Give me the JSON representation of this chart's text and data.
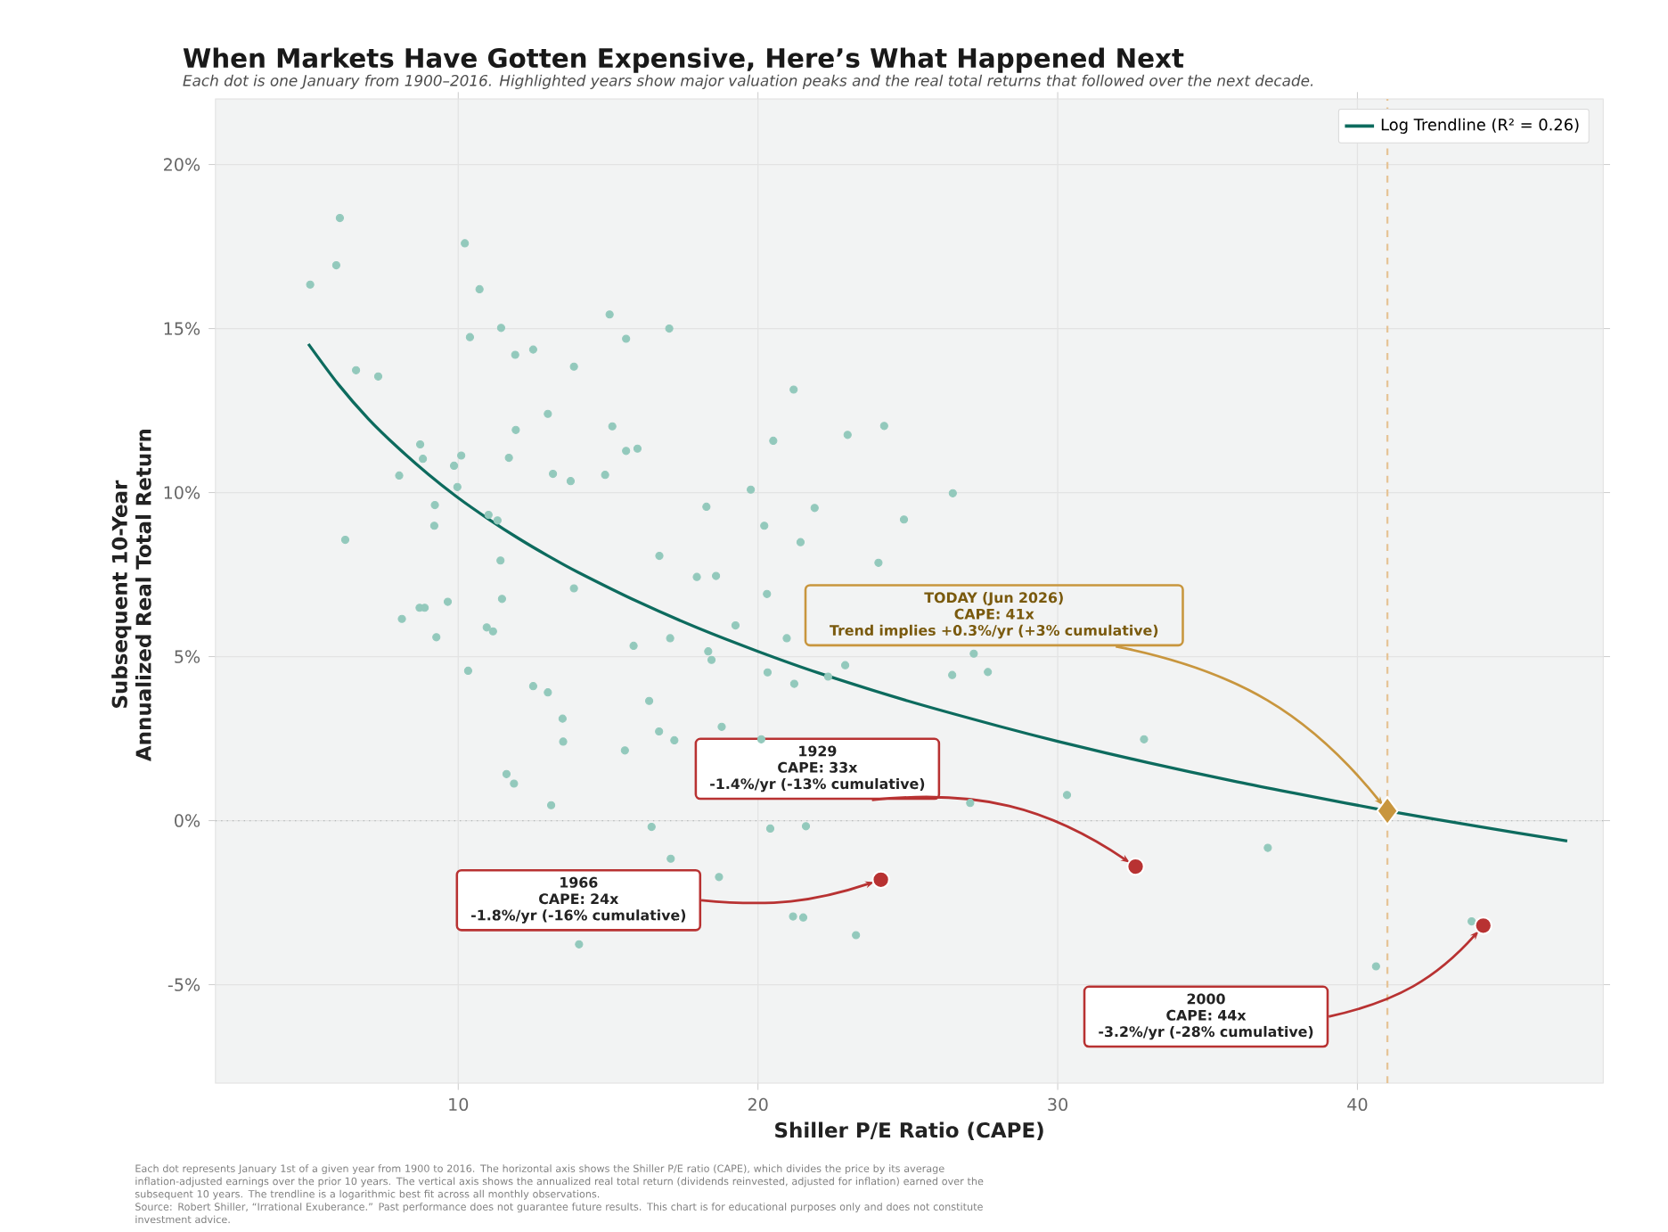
{
  "chart_data": {
    "type": "scatter",
    "title": "When Markets Have Gotten Expensive, Here’s What Happened Next",
    "subtitle": "Each dot is one January from 1900–2016. Highlighted years show major valuation peaks and the real total returns that followed over the next decade.",
    "xlabel": "Shiller P/E Ratio (CAPE)",
    "ylabel": "Subsequent 10-Year\nAnnualized Real Total Return",
    "xlim": [
      1.9,
      48.2
    ],
    "ylim": [
      -8,
      22
    ],
    "xticks": [
      10,
      20,
      30,
      40
    ],
    "yticks": [
      {
        "value": -5,
        "label": "-5%"
      },
      {
        "value": 0,
        "label": "0%"
      },
      {
        "value": 5,
        "label": "5%"
      },
      {
        "value": 10,
        "label": "10%"
      },
      {
        "value": 15,
        "label": "15%"
      },
      {
        "value": 20,
        "label": "20%"
      }
    ],
    "grid": true,
    "legend": "top right",
    "marker": "circle",
    "series": [
      {
        "color": "#93c9bc",
        "x": [
          6.05,
          5.93,
          5.06,
          10.22,
          10.71,
          10.39,
          11.43,
          11.9,
          12.5,
          13.86,
          15.05,
          15.6,
          17.04,
          6.59,
          7.33,
          12.99,
          11.92,
          15.14,
          15.6,
          15.98,
          8.73,
          8.82,
          10.1,
          9.86,
          11.69,
          13.16,
          13.75,
          14.9,
          8.03,
          9.97,
          9.22,
          9.2,
          6.23,
          11.01,
          11.31,
          11.41,
          18.28,
          16.71,
          17.96,
          18.6,
          13.86,
          11.46,
          9.65,
          8.71,
          8.88,
          8.12,
          9.27,
          10.95,
          11.16,
          15.85,
          17.07,
          21.19,
          22.99,
          24.21,
          20.51,
          19.76,
          21.89,
          26.5,
          20.21,
          24.87,
          21.42,
          24.02,
          20.3,
          19.25,
          20.96,
          10.33,
          12.5,
          12.99,
          13.48,
          13.5,
          18.34,
          18.45,
          20.32,
          21.21,
          22.34,
          22.91,
          16.37,
          16.7,
          17.21,
          18.79,
          20.11,
          15.56,
          11.61,
          11.86,
          13.1,
          16.45,
          20.41,
          21.6,
          17.09,
          18.7,
          21.17,
          21.51,
          23.27,
          14.03,
          26.48,
          27.67,
          27.2,
          32.88,
          27.08,
          30.31,
          37.01,
          40.62,
          43.81
        ],
        "values": [
          18.37,
          16.93,
          16.34,
          17.6,
          16.2,
          14.74,
          15.02,
          14.2,
          14.36,
          13.84,
          15.43,
          14.69,
          15.0,
          13.73,
          13.54,
          12.4,
          11.91,
          12.02,
          11.27,
          11.34,
          11.47,
          11.03,
          11.13,
          10.82,
          11.06,
          10.57,
          10.35,
          10.54,
          10.52,
          10.17,
          9.62,
          8.99,
          8.56,
          9.32,
          9.15,
          7.93,
          9.57,
          8.07,
          7.43,
          7.46,
          7.08,
          6.76,
          6.67,
          6.49,
          6.49,
          6.15,
          5.59,
          5.89,
          5.77,
          5.33,
          5.56,
          13.14,
          11.76,
          12.03,
          11.58,
          10.09,
          9.53,
          9.98,
          8.99,
          9.18,
          8.49,
          7.86,
          6.91,
          5.95,
          5.56,
          4.57,
          4.1,
          3.91,
          3.11,
          2.41,
          5.16,
          4.9,
          4.52,
          4.17,
          4.39,
          4.74,
          3.65,
          2.72,
          2.45,
          2.86,
          2.48,
          2.14,
          1.42,
          1.13,
          0.47,
          -0.19,
          -0.24,
          -0.17,
          -1.16,
          -1.72,
          -2.92,
          -2.95,
          -3.49,
          -3.77,
          4.44,
          4.53,
          5.09,
          2.48,
          0.54,
          0.78,
          -0.83,
          -4.44,
          -3.07
        ]
      },
      {
        "type": "line",
        "name": "Log Trendline (R² = 0.26)",
        "color": "#0d6b5e",
        "marker": "none",
        "x": [
          5,
          6,
          7,
          8,
          9,
          10,
          11,
          12,
          13,
          14,
          16,
          18,
          20,
          22,
          25,
          28,
          30,
          33,
          36,
          38,
          41,
          44,
          47
        ],
        "values": [
          14.53,
          13.3,
          12.25,
          11.36,
          10.56,
          9.84,
          9.2,
          8.61,
          8.07,
          7.57,
          6.67,
          5.87,
          5.16,
          4.51,
          3.65,
          2.89,
          2.42,
          1.77,
          1.18,
          0.82,
          0.3,
          -0.17,
          -0.62
        ]
      },
      {
        "color": "#b83232",
        "x": [
          24.1,
          32.6,
          44.2
        ],
        "values": [
          -1.8,
          -1.4,
          -3.2
        ]
      },
      {
        "color": "#c8963e",
        "marker": "diamond",
        "x": [
          41
        ],
        "values": [
          0.3
        ]
      }
    ],
    "ref_lines": [
      {
        "axis": "y",
        "value": 0,
        "color": "#b4b8b8",
        "line_style": "dotted"
      },
      {
        "axis": "x",
        "value": 41,
        "color": "#e6c497",
        "line_style": "dashed"
      }
    ],
    "annotations": [
      {
        "text": "1966\nCAPE: 24x\n-1.8%/yr  (-16% cumulative)",
        "x": 24.1,
        "y": -1.8
      },
      {
        "text": "1929\nCAPE: 33x\n-1.4%/yr  (-13% cumulative)",
        "x": 32.6,
        "y": -1.4
      },
      {
        "text": "2000\nCAPE: 44x\n-3.2%/yr  (-28% cumulative)",
        "x": 44.2,
        "y": -3.2
      },
      {
        "text": "TODAY  (Jun 2026)\nCAPE: 41x\nTrend implies +0.3%/yr  (+3% cumulative)",
        "x": 41,
        "y": 0.3
      },
      "Each dot represents January 1st of a given year from 1900 to 2016. The horizontal axis shows the Shiller P/E ratio (CAPE), which divides the price by its average inflation-adjusted earnings over the prior 10 years. The vertical axis shows the annualized real total return (dividends reinvested, adjusted for inflation) earned over the subsequent 10 years. The trendline is a logarithmic best fit across all monthly observations.\nSource: Robert Shiller, “Irrational Exuberance.” Past performance does not guarantee future results. This chart is for educational purposes only and does not constitute investment advice."
    ]
  }
}
